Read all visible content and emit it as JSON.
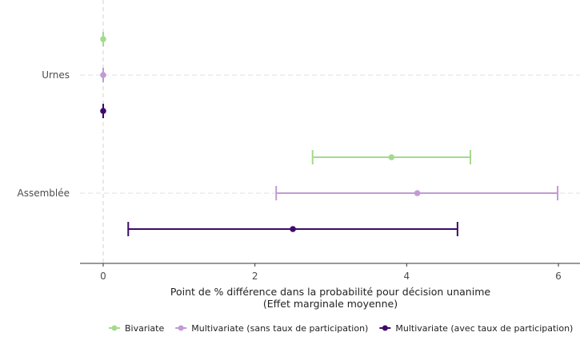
{
  "chart_data": {
    "type": "errorbar",
    "categories": [
      "Urnes",
      "Assemblée"
    ],
    "series": [
      {
        "name": "Bivariate",
        "color": "#a3db8d",
        "values": [
          {
            "category": "Urnes",
            "estimate": 0.0,
            "lower": 0.0,
            "upper": 0.0
          },
          {
            "category": "Assemblée",
            "estimate": 3.8,
            "lower": 2.76,
            "upper": 4.84
          }
        ]
      },
      {
        "name": "Multivariate (sans taux de participation)",
        "color": "#c29ad5",
        "values": [
          {
            "category": "Urnes",
            "estimate": 0.0,
            "lower": 0.0,
            "upper": 0.0
          },
          {
            "category": "Assemblée",
            "estimate": 4.14,
            "lower": 2.28,
            "upper": 5.99
          }
        ]
      },
      {
        "name": "Multivariate (avec taux de participation)",
        "color": "#3f0a6a",
        "values": [
          {
            "category": "Urnes",
            "estimate": 0.0,
            "lower": 0.0,
            "upper": 0.0
          },
          {
            "category": "Assemblée",
            "estimate": 2.5,
            "lower": 0.33,
            "upper": 4.67
          }
        ]
      }
    ],
    "xlim": [
      -0.3,
      6.25
    ],
    "xticks": [
      0,
      2,
      4,
      6
    ],
    "reference_line": 0,
    "xlabel": "Point de % différence dans la probabilité pour décision unanime",
    "xlabel_sub": "(Effet marginale moyenne)",
    "ylabel": "",
    "legend_position": "bottom",
    "grid": "horizontal-dashed"
  }
}
